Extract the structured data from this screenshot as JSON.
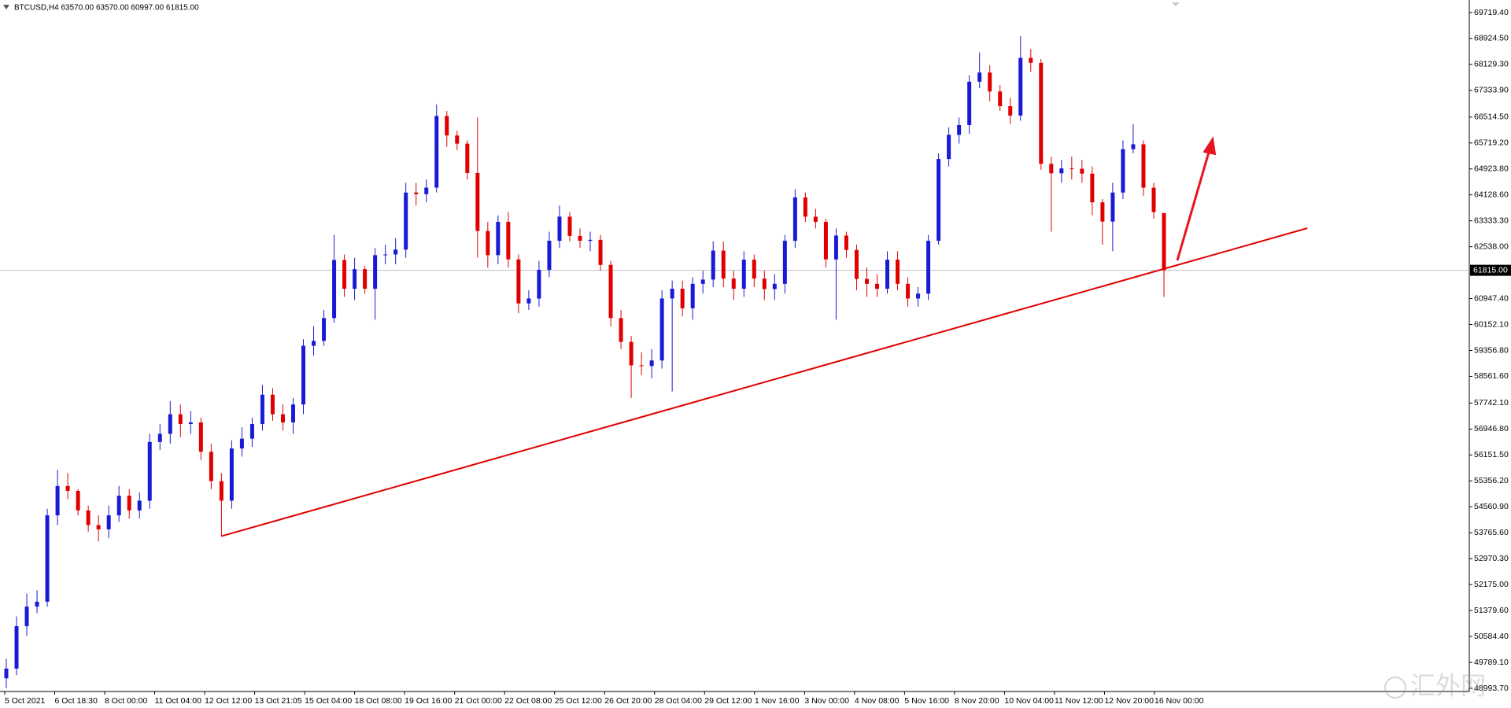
{
  "chart_data": {
    "type": "candlestick",
    "title": "BTCUSD,H4  63570.00 63570.00 60997.00 61815.00",
    "up_color": "#1a1ad6",
    "down_color": "#e00000",
    "open": [
      49300,
      49600,
      50900,
      51500,
      51650,
      54300,
      55200,
      55050,
      54450,
      54000,
      53870,
      54300,
      54900,
      54450,
      54750,
      56550,
      56800,
      57400,
      57100,
      57150,
      56250,
      55350,
      54750,
      56350,
      56650,
      57100,
      58000,
      57400,
      57150,
      57700,
      59500,
      59650,
      60350,
      62130,
      61250,
      61850,
      61250,
      62280,
      62300,
      62450,
      64200,
      64150,
      64350,
      66550,
      65950,
      65700,
      64800,
      63020,
      62280,
      63300,
      62150,
      60800,
      60950,
      61830,
      62720,
      63460,
      62870,
      62720,
      62750,
      61980,
      60350,
      59620,
      58900,
      58880,
      59050,
      60950,
      61250,
      60650,
      61400,
      61530,
      62420,
      61560,
      61250,
      62140,
      61560,
      61240,
      61400,
      62720,
      64050,
      63460,
      63300,
      62150,
      62880,
      62440,
      61550,
      61400,
      61250,
      62140,
      61400,
      60950,
      61100,
      62720,
      65230,
      65970,
      66270,
      67600,
      67880,
      67300,
      66850,
      66560,
      68330,
      68180,
      65080,
      64790,
      64940,
      64930,
      64780,
      63900,
      63310,
      64200,
      65530,
      65680,
      64350,
      63570
    ],
    "high": [
      49900,
      51200,
      51900,
      52000,
      54500,
      55700,
      55600,
      55100,
      54600,
      54300,
      54600,
      55200,
      55100,
      55000,
      56800,
      57100,
      57800,
      57700,
      57500,
      57300,
      56500,
      55600,
      56600,
      57000,
      57300,
      58300,
      58200,
      57700,
      57900,
      59700,
      60100,
      60600,
      62900,
      62300,
      62200,
      61950,
      62500,
      62600,
      62800,
      64500,
      64500,
      64600,
      66900,
      66700,
      66100,
      65800,
      66500,
      63300,
      63500,
      63600,
      62300,
      61200,
      62100,
      63000,
      63800,
      63600,
      63100,
      63000,
      62900,
      62100,
      60600,
      59800,
      59300,
      59400,
      61200,
      61500,
      61500,
      61600,
      61800,
      62700,
      62700,
      61800,
      62400,
      62300,
      61800,
      61700,
      62900,
      64300,
      64200,
      63700,
      63400,
      63100,
      63000,
      62600,
      61900,
      61700,
      62400,
      62400,
      61600,
      61300,
      62900,
      65400,
      66200,
      66500,
      67800,
      68500,
      68100,
      67500,
      67100,
      69000,
      68600,
      68300,
      65300,
      65200,
      65300,
      65200,
      65000,
      64000,
      64500,
      65800,
      66300,
      65800,
      64500,
      63570
    ],
    "low": [
      49000,
      49400,
      50600,
      51300,
      51500,
      54000,
      54800,
      54300,
      53800,
      53500,
      53600,
      54100,
      54200,
      54200,
      54500,
      56300,
      56500,
      56700,
      56800,
      56000,
      55100,
      53660,
      54500,
      56100,
      56400,
      56900,
      57200,
      56900,
      56800,
      57400,
      59200,
      59500,
      60200,
      61000,
      60900,
      61100,
      60300,
      62000,
      62000,
      62200,
      63800,
      63900,
      64200,
      65600,
      65500,
      64600,
      62200,
      61900,
      62000,
      61900,
      60500,
      60600,
      60700,
      61600,
      62500,
      62700,
      62500,
      62400,
      61800,
      60100,
      59400,
      57900,
      58600,
      58500,
      58800,
      58100,
      60400,
      60300,
      61100,
      61300,
      61300,
      60900,
      61000,
      61300,
      60900,
      60900,
      61100,
      62500,
      63300,
      63100,
      61900,
      60300,
      62200,
      61200,
      61000,
      61000,
      61100,
      61200,
      60700,
      60700,
      60900,
      62600,
      65000,
      65700,
      66000,
      67400,
      67000,
      66700,
      66300,
      66400,
      67900,
      64900,
      63000,
      64500,
      64600,
      64500,
      63500,
      62600,
      62400,
      64000,
      65400,
      64100,
      63400,
      60997
    ],
    "close": [
      49600,
      50900,
      51500,
      51650,
      54300,
      55200,
      55050,
      54450,
      54000,
      53870,
      54300,
      54900,
      54450,
      54750,
      56550,
      56800,
      57400,
      57100,
      57150,
      56250,
      55350,
      54750,
      56350,
      56650,
      57100,
      58000,
      57400,
      57150,
      57700,
      59500,
      59650,
      60350,
      62130,
      61250,
      61850,
      61250,
      62280,
      62300,
      62450,
      64200,
      64150,
      64350,
      66550,
      65950,
      65700,
      64800,
      63020,
      62280,
      63300,
      62150,
      60800,
      60950,
      61830,
      62720,
      63460,
      62870,
      62720,
      62750,
      61980,
      60350,
      59620,
      58900,
      58880,
      59050,
      60950,
      61250,
      60650,
      61400,
      61530,
      62420,
      61560,
      61250,
      62140,
      61560,
      61240,
      61400,
      62720,
      64050,
      63460,
      63300,
      62150,
      62880,
      62440,
      61550,
      61400,
      61250,
      62140,
      61400,
      60950,
      61100,
      62720,
      65230,
      65970,
      66270,
      67600,
      67880,
      67300,
      66850,
      66560,
      68330,
      68180,
      65080,
      64790,
      64940,
      64930,
      64780,
      63900,
      63310,
      64200,
      65530,
      65680,
      64350,
      63600,
      61815
    ],
    "ylim": [
      48993.7,
      69719.4
    ],
    "yticks": [
      {
        "value": 69719.4,
        "label": "69719.40"
      },
      {
        "value": 68924.5,
        "label": "68924.50"
      },
      {
        "value": 68129.3,
        "label": "68129.30"
      },
      {
        "value": 67333.9,
        "label": "67333.90"
      },
      {
        "value": 66514.5,
        "label": "66514.50"
      },
      {
        "value": 65719.2,
        "label": "65719.20"
      },
      {
        "value": 64923.8,
        "label": "64923.80"
      },
      {
        "value": 64128.6,
        "label": "64128.60"
      },
      {
        "value": 63333.3,
        "label": "63333.30"
      },
      {
        "value": 62538,
        "label": "62538.00"
      },
      {
        "value": 60947.4,
        "label": "60947.40"
      },
      {
        "value": 60152.1,
        "label": "60152.10"
      },
      {
        "value": 59356.8,
        "label": "59356.80"
      },
      {
        "value": 58561.6,
        "label": "58561.60"
      },
      {
        "value": 57742.1,
        "label": "57742.10"
      },
      {
        "value": 56946.8,
        "label": "56946.80"
      },
      {
        "value": 56151.5,
        "label": "56151.50"
      },
      {
        "value": 55356.2,
        "label": "55356.20"
      },
      {
        "value": 54560.9,
        "label": "54560.90"
      },
      {
        "value": 53765.6,
        "label": "53765.60"
      },
      {
        "value": 52970.3,
        "label": "52970.30"
      },
      {
        "value": 52175,
        "label": "52175.00"
      },
      {
        "value": 51379.6,
        "label": "51379.60"
      },
      {
        "value": 50584.4,
        "label": "50584.40"
      },
      {
        "value": 49789.1,
        "label": "49789.10"
      },
      {
        "value": 48993.7,
        "label": "48993.70"
      }
    ],
    "last_price": {
      "value": 61815,
      "label": "61815.00"
    },
    "time_labels": [
      "5 Oct 2021",
      "6 Oct 18:30",
      "8 Oct 00:00",
      "11 Oct 04:00",
      "12 Oct 12:00",
      "13 Oct 21:05",
      "15 Oct 04:00",
      "18 Oct 08:00",
      "19 Oct 16:00",
      "21 Oct 00:00",
      "22 Oct 08:00",
      "25 Oct 12:00",
      "26 Oct 20:00",
      "28 Oct 04:00",
      "29 Oct 12:00",
      "1 Nov 16:00",
      "3 Nov 00:00",
      "4 Nov 08:00",
      "5 Nov 16:00",
      "8 Nov 20:00",
      "10 Nov 04:00",
      "11 Nov 12:00",
      "12 Nov 20:00",
      "16 Nov 00:00"
    ],
    "trendline": {
      "x": [
        21,
        127
      ],
      "y": [
        53660,
        63107
      ]
    },
    "watermark": "汇外网"
  }
}
